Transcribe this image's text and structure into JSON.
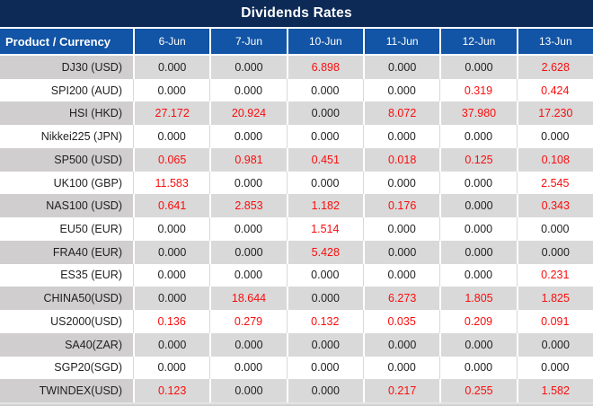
{
  "chart_data": {
    "type": "table",
    "title": "Dividends Rates",
    "row_header_label": "Product / Currency",
    "columns": [
      "6-Jun",
      "7-Jun",
      "10-Jun",
      "11-Jun",
      "12-Jun",
      "13-Jun"
    ],
    "rows": [
      {
        "product": "DJ30 (USD)",
        "values": [
          "0.000",
          "0.000",
          "6.898",
          "0.000",
          "0.000",
          "2.628"
        ]
      },
      {
        "product": "SPI200 (AUD)",
        "values": [
          "0.000",
          "0.000",
          "0.000",
          "0.000",
          "0.319",
          "0.424"
        ]
      },
      {
        "product": "HSI (HKD)",
        "values": [
          "27.172",
          "20.924",
          "0.000",
          "8.072",
          "37.980",
          "17.230"
        ]
      },
      {
        "product": "Nikkei225 (JPN)",
        "values": [
          "0.000",
          "0.000",
          "0.000",
          "0.000",
          "0.000",
          "0.000"
        ]
      },
      {
        "product": "SP500 (USD)",
        "values": [
          "0.065",
          "0.981",
          "0.451",
          "0.018",
          "0.125",
          "0.108"
        ]
      },
      {
        "product": "UK100 (GBP)",
        "values": [
          "11.583",
          "0.000",
          "0.000",
          "0.000",
          "0.000",
          "2.545"
        ]
      },
      {
        "product": "NAS100 (USD)",
        "values": [
          "0.641",
          "2.853",
          "1.182",
          "0.176",
          "0.000",
          "0.343"
        ]
      },
      {
        "product": "EU50 (EUR)",
        "values": [
          "0.000",
          "0.000",
          "1.514",
          "0.000",
          "0.000",
          "0.000"
        ]
      },
      {
        "product": "FRA40 (EUR)",
        "values": [
          "0.000",
          "0.000",
          "5.428",
          "0.000",
          "0.000",
          "0.000"
        ]
      },
      {
        "product": "ES35 (EUR)",
        "values": [
          "0.000",
          "0.000",
          "0.000",
          "0.000",
          "0.000",
          "0.231"
        ]
      },
      {
        "product": "CHINA50(USD)",
        "values": [
          "0.000",
          "18.644",
          "0.000",
          "6.273",
          "1.805",
          "1.825"
        ]
      },
      {
        "product": "US2000(USD)",
        "values": [
          "0.136",
          "0.279",
          "0.132",
          "0.035",
          "0.209",
          "0.091"
        ]
      },
      {
        "product": "SA40(ZAR)",
        "values": [
          "0.000",
          "0.000",
          "0.000",
          "0.000",
          "0.000",
          "0.000"
        ]
      },
      {
        "product": "SGP20(SGD)",
        "values": [
          "0.000",
          "0.000",
          "0.000",
          "0.000",
          "0.000",
          "0.000"
        ]
      },
      {
        "product": "TWINDEX(USD)",
        "values": [
          "0.123",
          "0.000",
          "0.000",
          "0.217",
          "0.255",
          "1.582"
        ]
      }
    ],
    "highlight_rule": "values other than 0.000 are shown in red",
    "zero_value_text": "0.000"
  },
  "colors": {
    "title_bg": "#0D2A56",
    "header_bg": "#1254A5",
    "stripe_product": "#D0CECE",
    "stripe_value": "#D9D9D9",
    "grid_line": "#D9D9D9",
    "value_red": "#FB0D0D",
    "text_dark": "#1F1F1F"
  }
}
